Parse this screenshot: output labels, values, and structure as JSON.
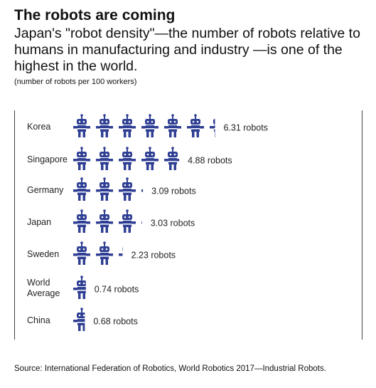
{
  "chart_data": {
    "type": "pictograph",
    "title": "The robots are coming",
    "subtitle": "Japan's \"robot density\"—the number of robots relative to humans in manufacturing and industry —is one of the highest in the world.",
    "note": "(number of robots per 100 workers)",
    "source": "Source: International Federation of Robotics, World Robotics 2017—Industrial Robots.",
    "categories": [
      "Korea",
      "Singapore",
      "Germany",
      "Japan",
      "Sweden",
      "World Average",
      "China"
    ],
    "values": [
      6.31,
      4.88,
      3.09,
      3.03,
      2.23,
      0.74,
      0.68
    ],
    "value_labels": [
      "6.31 robots",
      "4.88 robots",
      "3.09 robots",
      "3.03 robots",
      "2.23 robots",
      "0.74 robots",
      "0.68 robots"
    ],
    "color": "#2f3f93"
  }
}
